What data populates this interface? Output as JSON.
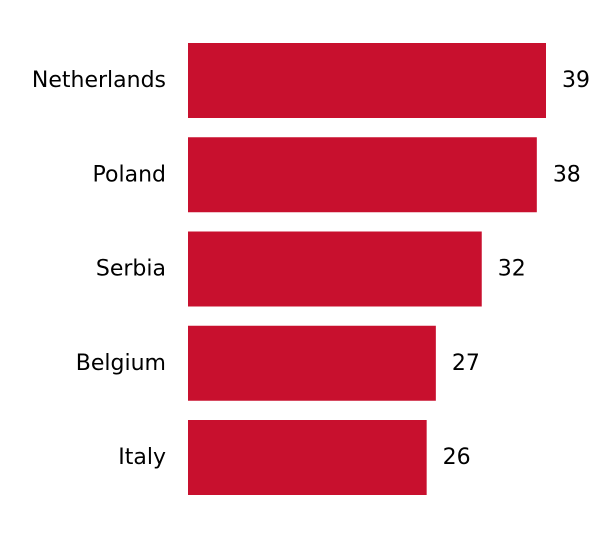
{
  "chart_data": {
    "type": "bar",
    "orientation": "horizontal",
    "categories": [
      "Netherlands",
      "Poland",
      "Serbia",
      "Belgium",
      "Italy"
    ],
    "values": [
      39,
      38,
      32,
      27,
      26
    ],
    "title": "",
    "xlabel": "",
    "ylabel": "",
    "xlim": [
      0,
      39
    ],
    "grid": false,
    "legend": "none",
    "bar_color": "#C8102E"
  }
}
